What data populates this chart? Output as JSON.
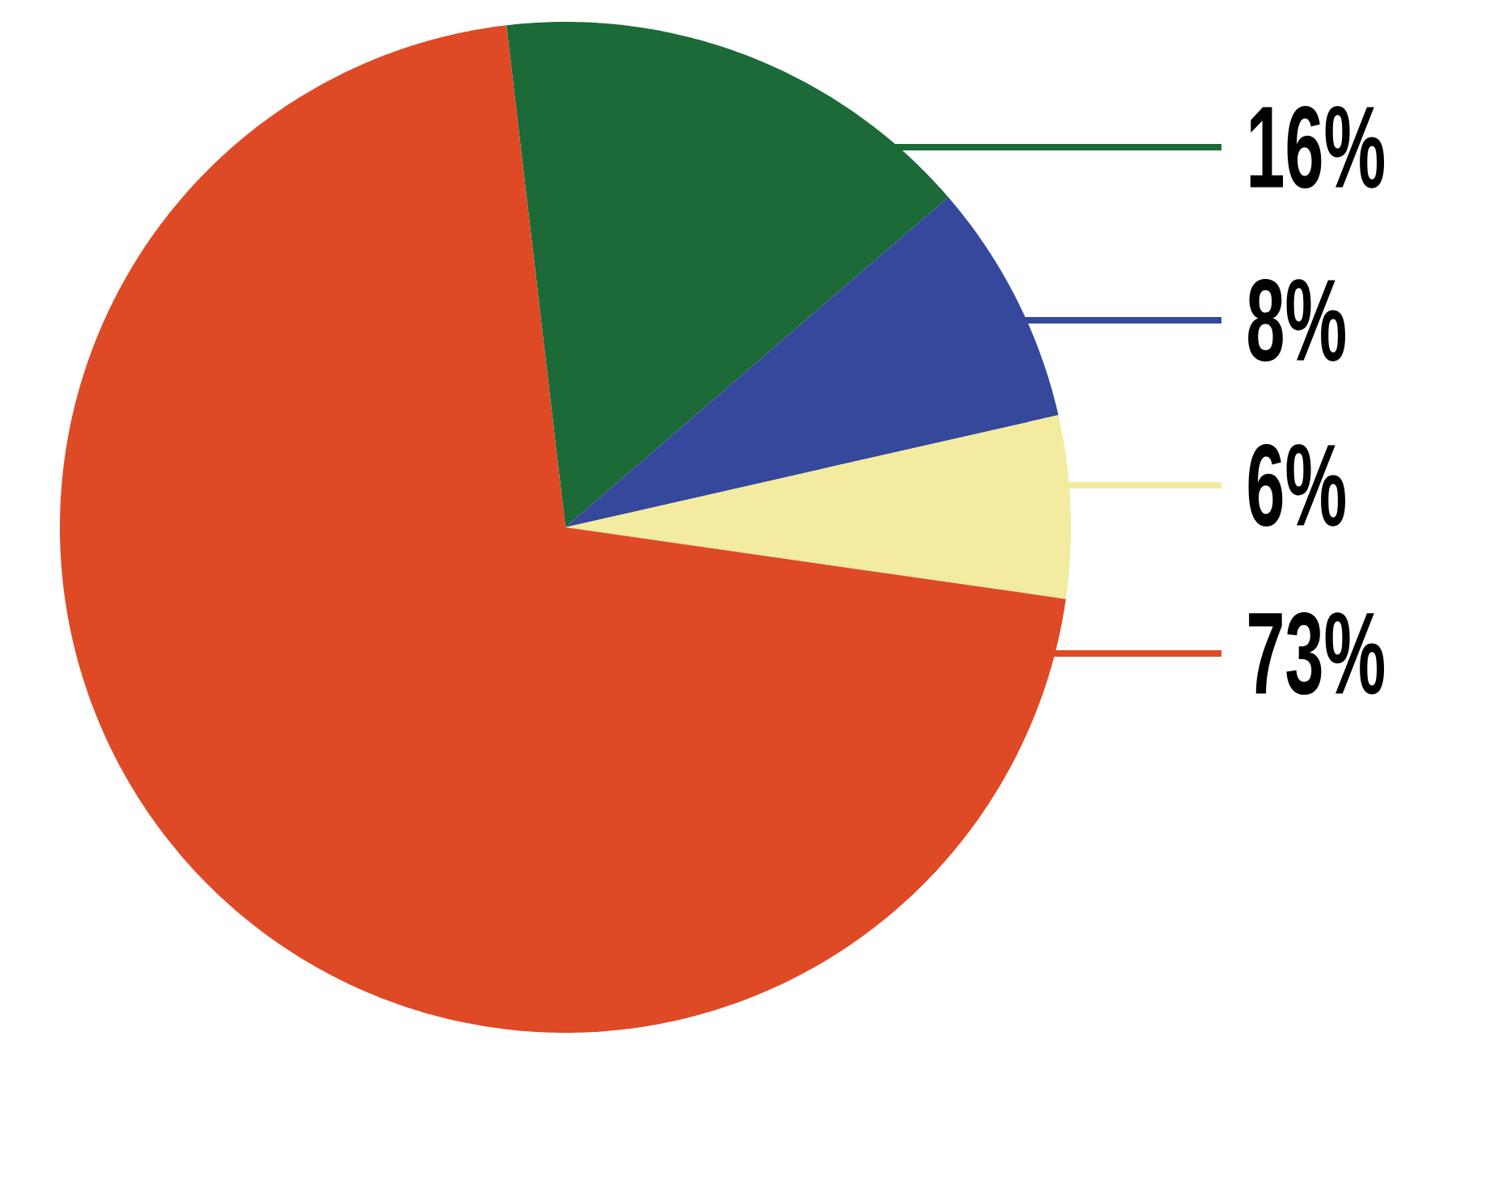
{
  "chart_data": {
    "type": "pie",
    "categories": [
      null,
      null,
      null,
      null
    ],
    "values": [
      16,
      8,
      6,
      73
    ],
    "colors": [
      "#1b6a37",
      "#35489c",
      "#f3eba0",
      "#de4a26"
    ],
    "value_labels": [
      "16%",
      "8%",
      "6%",
      "73%"
    ]
  }
}
